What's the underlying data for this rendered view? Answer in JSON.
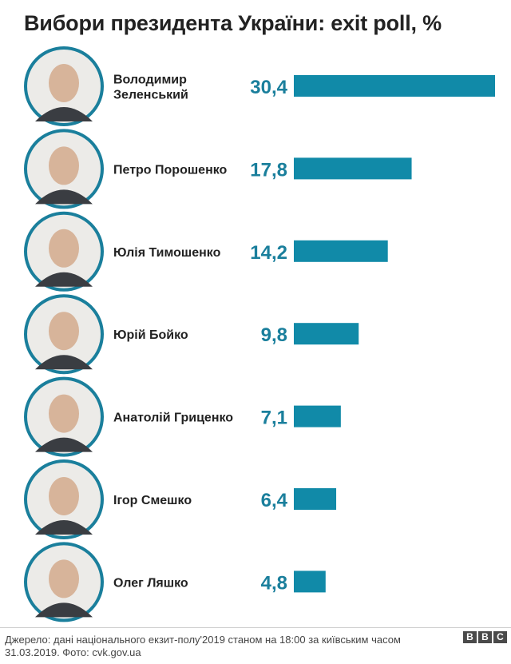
{
  "title": "Вибори президента України: exit poll, %",
  "chart_data": {
    "type": "bar",
    "orientation": "horizontal",
    "title": "Вибори президента України: exit poll, %",
    "categories": [
      [
        "Володимир",
        "Зеленський"
      ],
      [
        "Петро Порошенко"
      ],
      [
        "Юлія Тимошенко"
      ],
      [
        "Юрій Бойко"
      ],
      [
        "Анатолій Гриценко"
      ],
      [
        "Ігор Смешко"
      ],
      [
        "Олег Ляшко"
      ]
    ],
    "values": [
      30.4,
      17.8,
      14.2,
      9.8,
      7.1,
      6.4,
      4.8
    ],
    "value_labels": [
      "30,4",
      "17,8",
      "14,2",
      "9,8",
      "7,1",
      "6,4",
      "4,8"
    ],
    "xlim": [
      0,
      30.4
    ],
    "grid": false,
    "bar_color": "#118aa8",
    "value_color": "#1a7f9c",
    "photo_ring_color": "#1a7f9c"
  },
  "source": "Джерело: дані національного екзит-полу'2019 станом на 18:00 за київським часом 31.03.2019. Фото: cvk.gov.ua",
  "logo": [
    "B",
    "B",
    "C"
  ]
}
